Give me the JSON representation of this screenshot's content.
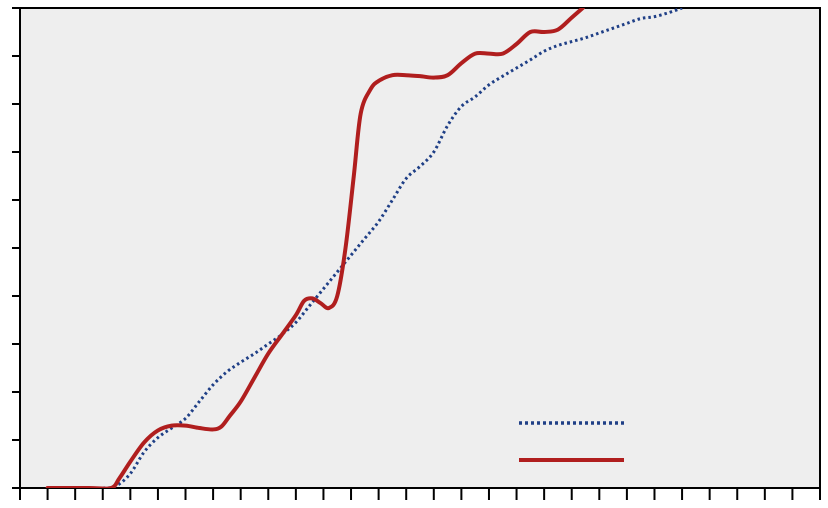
{
  "chart_data": {
    "type": "line",
    "title": "",
    "xlabel": "",
    "ylabel": "",
    "xlim": [
      0,
      29
    ],
    "ylim": [
      0,
      10
    ],
    "x_tick_count": 30,
    "y_tick_count": 11,
    "grid": false,
    "legend": {
      "position": "bottom-right",
      "entries": [
        {
          "series": 0,
          "label": ""
        },
        {
          "series": 1,
          "label": ""
        }
      ]
    },
    "series": [
      {
        "style": "dotted",
        "color": "#1f3f86",
        "points": [
          [
            1.0,
            0.0
          ],
          [
            3.0,
            0.0
          ],
          [
            3.5,
            0.05
          ],
          [
            4.0,
            0.3
          ],
          [
            4.5,
            0.75
          ],
          [
            5.0,
            1.05
          ],
          [
            5.5,
            1.25
          ],
          [
            6.0,
            1.45
          ],
          [
            6.5,
            1.8
          ],
          [
            7.0,
            2.15
          ],
          [
            7.5,
            2.42
          ],
          [
            8.0,
            2.62
          ],
          [
            8.5,
            2.8
          ],
          [
            9.0,
            3.0
          ],
          [
            9.5,
            3.2
          ],
          [
            10.0,
            3.45
          ],
          [
            10.5,
            3.8
          ],
          [
            11.0,
            4.15
          ],
          [
            11.5,
            4.5
          ],
          [
            12.0,
            4.85
          ],
          [
            12.5,
            5.2
          ],
          [
            13.0,
            5.55
          ],
          [
            13.5,
            6.0
          ],
          [
            14.0,
            6.45
          ],
          [
            14.5,
            6.7
          ],
          [
            15.0,
            7.0
          ],
          [
            15.5,
            7.55
          ],
          [
            16.0,
            7.95
          ],
          [
            16.5,
            8.15
          ],
          [
            17.0,
            8.4
          ],
          [
            17.5,
            8.58
          ],
          [
            18.0,
            8.75
          ],
          [
            18.5,
            8.92
          ],
          [
            19.0,
            9.1
          ],
          [
            19.5,
            9.22
          ],
          [
            20.0,
            9.3
          ],
          [
            20.5,
            9.38
          ],
          [
            21.0,
            9.48
          ],
          [
            21.5,
            9.58
          ],
          [
            22.0,
            9.68
          ],
          [
            22.5,
            9.78
          ],
          [
            23.0,
            9.82
          ],
          [
            23.5,
            9.9
          ],
          [
            24.0,
            10.0
          ]
        ]
      },
      {
        "style": "solid",
        "color": "#b01e1e",
        "points": [
          [
            1.0,
            0.0
          ],
          [
            2.5,
            0.0
          ],
          [
            3.3,
            0.0
          ],
          [
            3.6,
            0.2
          ],
          [
            4.0,
            0.55
          ],
          [
            4.5,
            0.95
          ],
          [
            5.0,
            1.2
          ],
          [
            5.5,
            1.3
          ],
          [
            6.0,
            1.3
          ],
          [
            6.5,
            1.25
          ],
          [
            7.0,
            1.22
          ],
          [
            7.3,
            1.28
          ],
          [
            7.6,
            1.5
          ],
          [
            8.0,
            1.8
          ],
          [
            8.5,
            2.3
          ],
          [
            9.0,
            2.8
          ],
          [
            9.5,
            3.2
          ],
          [
            10.0,
            3.6
          ],
          [
            10.3,
            3.9
          ],
          [
            10.6,
            3.95
          ],
          [
            10.9,
            3.85
          ],
          [
            11.2,
            3.75
          ],
          [
            11.5,
            4.0
          ],
          [
            11.8,
            5.0
          ],
          [
            12.1,
            6.5
          ],
          [
            12.35,
            7.8
          ],
          [
            12.7,
            8.3
          ],
          [
            13.0,
            8.48
          ],
          [
            13.5,
            8.6
          ],
          [
            14.0,
            8.6
          ],
          [
            14.5,
            8.58
          ],
          [
            15.0,
            8.55
          ],
          [
            15.5,
            8.6
          ],
          [
            16.0,
            8.85
          ],
          [
            16.5,
            9.05
          ],
          [
            17.0,
            9.05
          ],
          [
            17.5,
            9.05
          ],
          [
            18.0,
            9.25
          ],
          [
            18.5,
            9.5
          ],
          [
            19.0,
            9.5
          ],
          [
            19.5,
            9.55
          ],
          [
            20.0,
            9.8
          ],
          [
            20.4,
            10.0
          ]
        ]
      }
    ]
  }
}
